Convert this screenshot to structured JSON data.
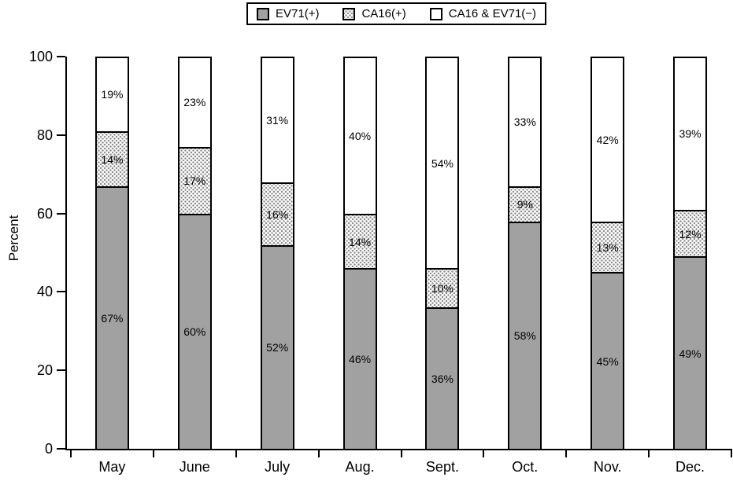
{
  "chart_data": {
    "type": "bar",
    "stacked": true,
    "stack_unit": "percent",
    "title": "",
    "xlabel": "",
    "ylabel": "Percent",
    "ylim": [
      0,
      100
    ],
    "yticks": [
      0,
      20,
      40,
      60,
      80,
      100
    ],
    "grid": false,
    "legend_position": "top-center",
    "categories": [
      "May",
      "June",
      "July",
      "Aug.",
      "Sept.",
      "Oct.",
      "Nov.",
      "Dec."
    ],
    "series": [
      {
        "name": "EV71(+)",
        "style": "solid-gray",
        "values": [
          67,
          60,
          52,
          46,
          36,
          58,
          45,
          49
        ]
      },
      {
        "name": "CA16(+)",
        "style": "stipple",
        "values": [
          14,
          17,
          16,
          14,
          10,
          9,
          13,
          12
        ]
      },
      {
        "name": "CA16 & EV71(−)",
        "style": "white",
        "values": [
          19,
          23,
          31,
          40,
          54,
          33,
          42,
          39
        ]
      }
    ],
    "value_label_suffix": "%",
    "colors": {
      "ev71_fill": "#a1a1a1",
      "stipple_dot": "#8f8f8f",
      "outline": "#000000",
      "background": "#ffffff"
    }
  }
}
